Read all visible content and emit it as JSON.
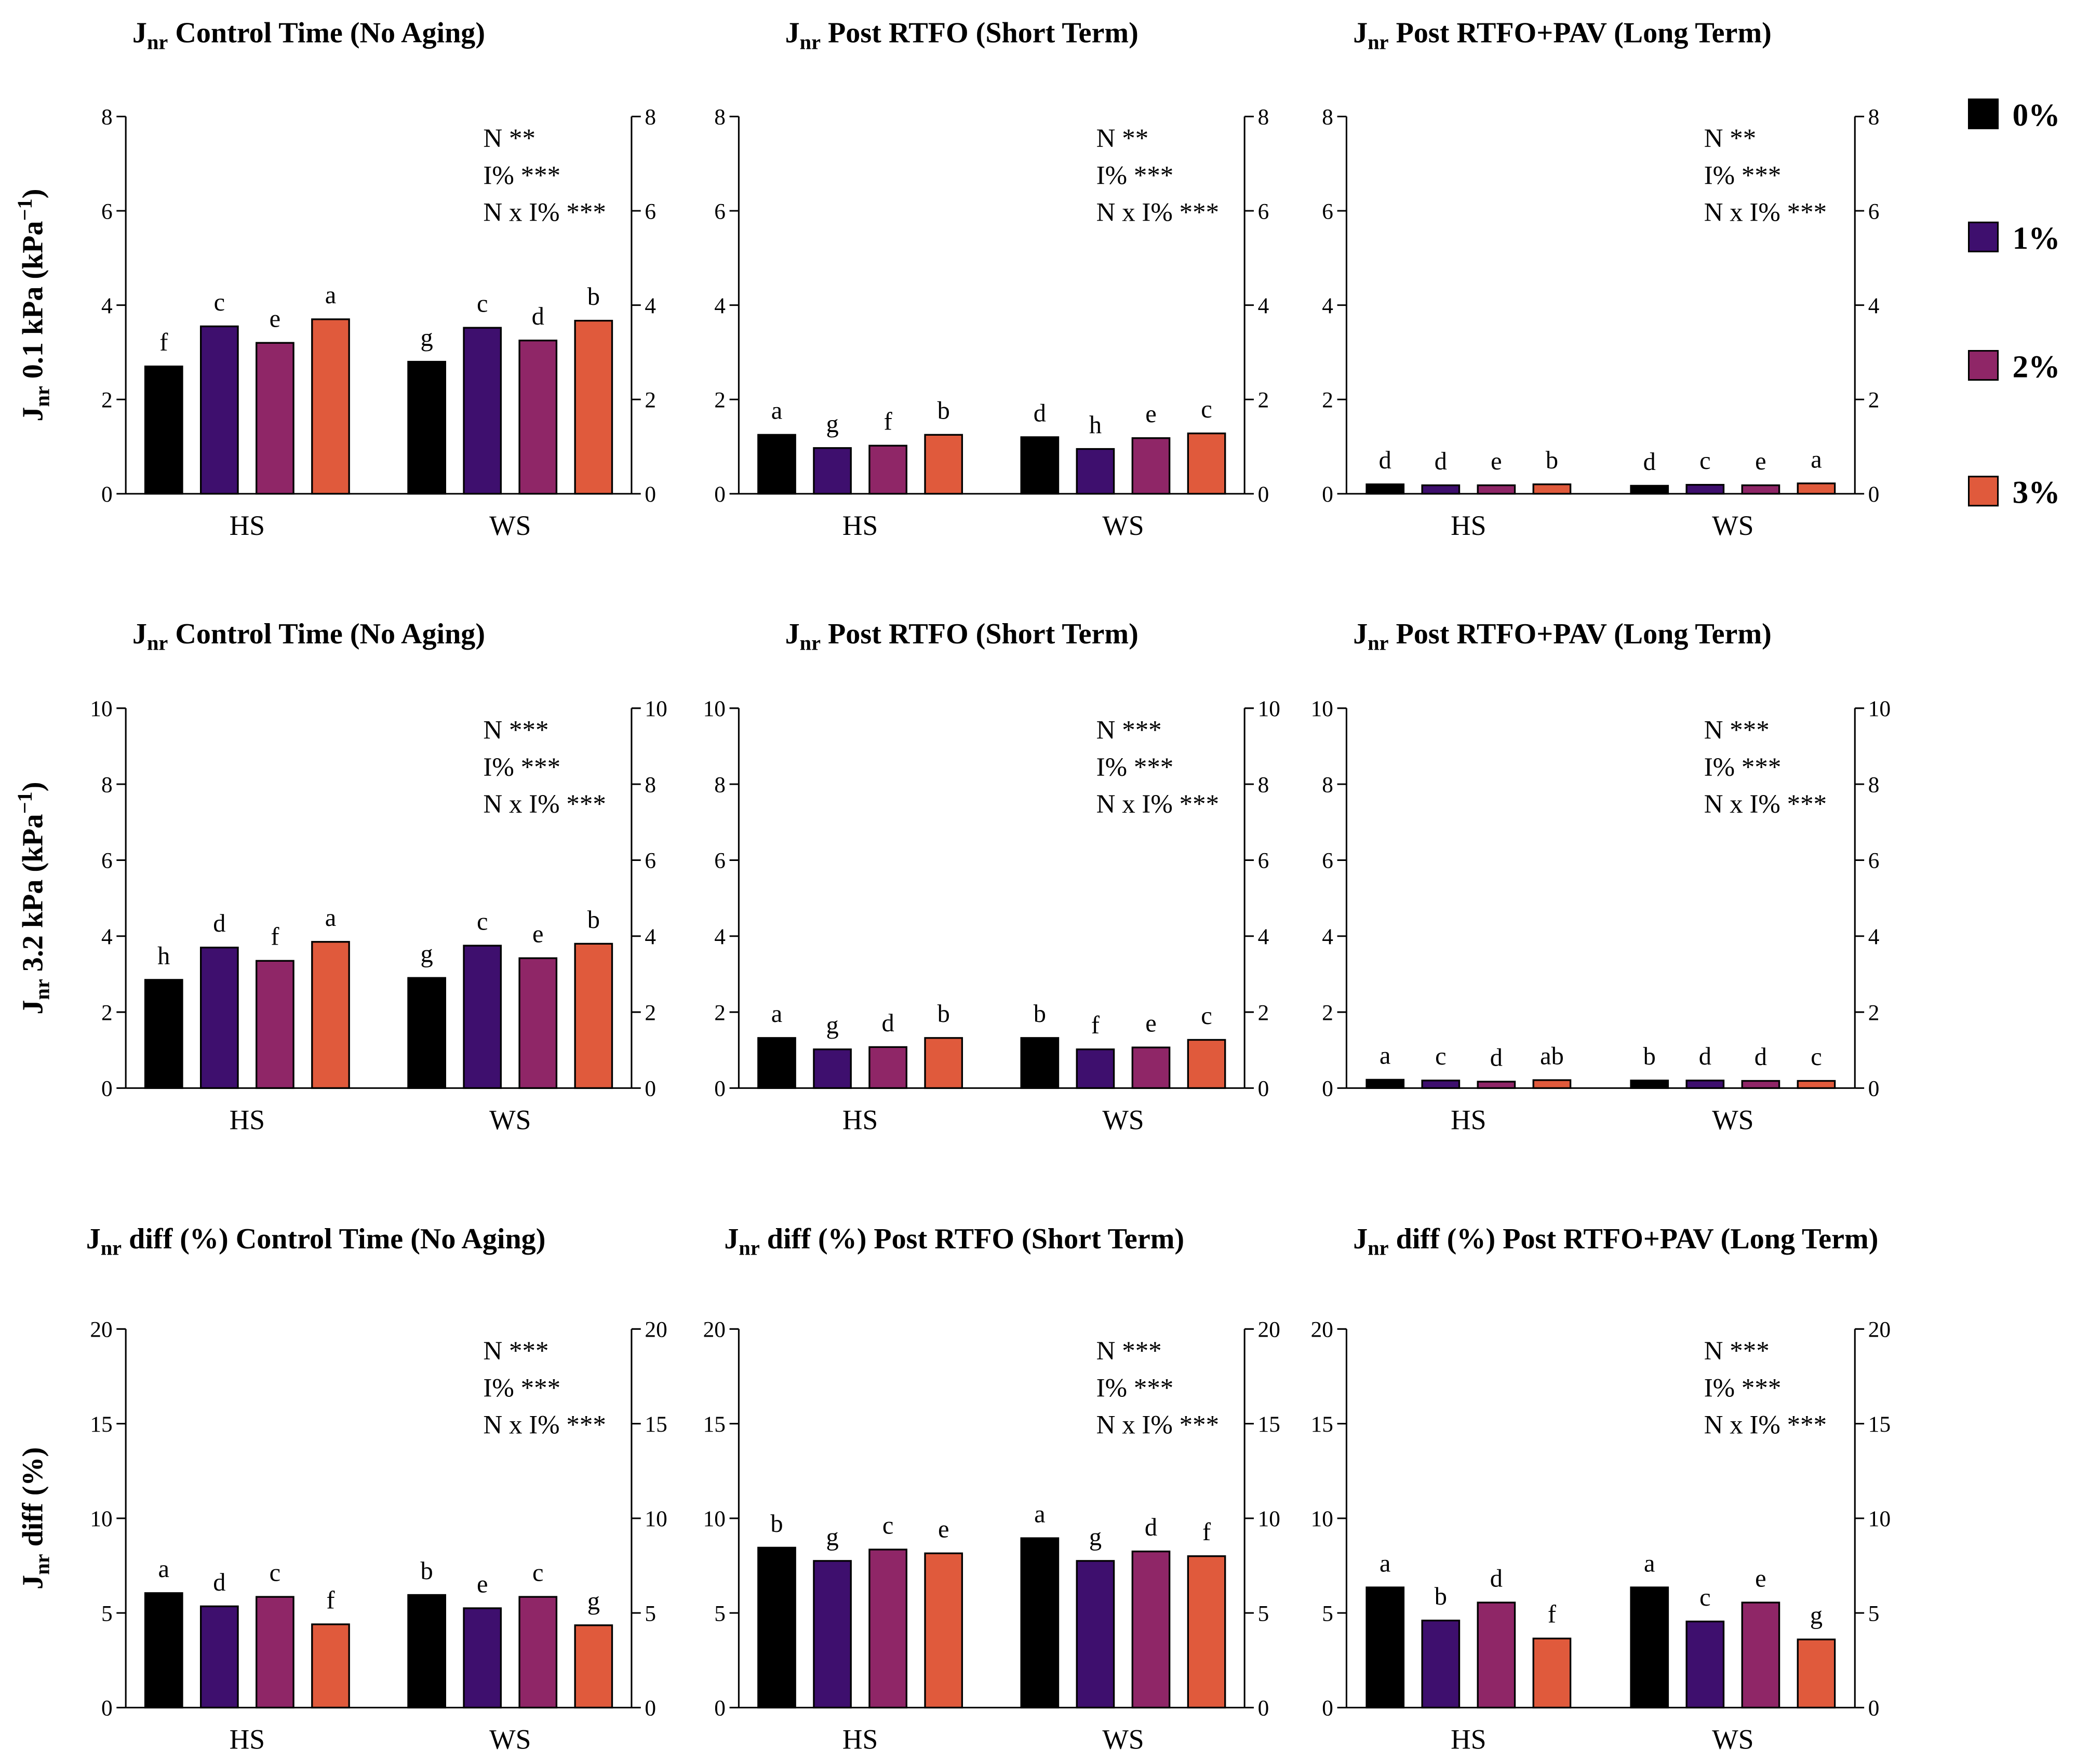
{
  "legend": {
    "entries": [
      {
        "name": "0%",
        "color": "#000000"
      },
      {
        "name": "1%",
        "color": "#3e0f6e"
      },
      {
        "name": "2%",
        "color": "#8f2667"
      },
      {
        "name": "3%",
        "color": "#e05a3c"
      }
    ]
  },
  "chart_data": [
    {
      "type": "bar",
      "title": {
        "main": "J",
        "sub": "nr",
        "rest": " Control Time (No Aging)"
      },
      "ylabel": {
        "main": "J",
        "sub": "nr",
        "rest": " 0.1 kPa (kPa",
        "sup": "−1",
        "end": ")"
      },
      "categories": [
        "HS",
        "WS"
      ],
      "series": [
        {
          "values": [
            2.7,
            2.8
          ],
          "letters": [
            "f",
            "g"
          ]
        },
        {
          "values": [
            3.55,
            3.52
          ],
          "letters": [
            "c",
            "c"
          ]
        },
        {
          "values": [
            3.2,
            3.25
          ],
          "letters": [
            "e",
            "d"
          ]
        },
        {
          "values": [
            3.7,
            3.67
          ],
          "letters": [
            "a",
            "b"
          ]
        }
      ],
      "annotations": [
        "N **",
        "I% ***",
        "N x I% ***"
      ],
      "ylim": [
        0,
        8
      ],
      "yticks": [
        0,
        2,
        4,
        6,
        8
      ]
    },
    {
      "type": "bar",
      "title": {
        "main": "J",
        "sub": "nr",
        "rest": " Post RTFO (Short Term)"
      },
      "categories": [
        "HS",
        "WS"
      ],
      "series": [
        {
          "values": [
            1.25,
            1.2
          ],
          "letters": [
            "a",
            "d"
          ]
        },
        {
          "values": [
            0.97,
            0.95
          ],
          "letters": [
            "g",
            "h"
          ]
        },
        {
          "values": [
            1.02,
            1.18
          ],
          "letters": [
            "f",
            "e"
          ]
        },
        {
          "values": [
            1.25,
            1.28
          ],
          "letters": [
            "b",
            "c"
          ]
        }
      ],
      "annotations": [
        "N **",
        "I% ***",
        "N x I% ***"
      ],
      "ylim": [
        0,
        8
      ],
      "yticks": [
        0,
        2,
        4,
        6,
        8
      ]
    },
    {
      "type": "bar",
      "title": {
        "main": "J",
        "sub": "nr",
        "rest": " Post RTFO+PAV (Long Term)"
      },
      "categories": [
        "HS",
        "WS"
      ],
      "series": [
        {
          "values": [
            0.2,
            0.17
          ],
          "letters": [
            "d",
            "d"
          ]
        },
        {
          "values": [
            0.18,
            0.19
          ],
          "letters": [
            "d",
            "c"
          ]
        },
        {
          "values": [
            0.18,
            0.18
          ],
          "letters": [
            "e",
            "e"
          ]
        },
        {
          "values": [
            0.2,
            0.22
          ],
          "letters": [
            "b",
            "a"
          ]
        }
      ],
      "annotations": [
        "N **",
        "I% ***",
        "N x I% ***"
      ],
      "ylim": [
        0,
        8
      ],
      "yticks": [
        0,
        2,
        4,
        6,
        8
      ]
    },
    {
      "type": "bar",
      "title": {
        "main": "J",
        "sub": "nr",
        "rest": " Control Time (No Aging)"
      },
      "ylabel": {
        "main": "J",
        "sub": "nr",
        "rest": " 3.2 kPa (kPa",
        "sup": "−1",
        "end": ")"
      },
      "categories": [
        "HS",
        "WS"
      ],
      "series": [
        {
          "values": [
            2.85,
            2.9
          ],
          "letters": [
            "h",
            "g"
          ]
        },
        {
          "values": [
            3.7,
            3.75
          ],
          "letters": [
            "d",
            "c"
          ]
        },
        {
          "values": [
            3.35,
            3.42
          ],
          "letters": [
            "f",
            "e"
          ]
        },
        {
          "values": [
            3.85,
            3.8
          ],
          "letters": [
            "a",
            "b"
          ]
        }
      ],
      "annotations": [
        "N ***",
        "I% ***",
        "N x I% ***"
      ],
      "ylim": [
        0,
        10
      ],
      "yticks": [
        0,
        2,
        4,
        6,
        8,
        10
      ]
    },
    {
      "type": "bar",
      "title": {
        "main": "J",
        "sub": "nr",
        "rest": " Post RTFO (Short Term)"
      },
      "categories": [
        "HS",
        "WS"
      ],
      "series": [
        {
          "values": [
            1.32,
            1.32
          ],
          "letters": [
            "a",
            "b"
          ]
        },
        {
          "values": [
            1.02,
            1.02
          ],
          "letters": [
            "g",
            "f"
          ]
        },
        {
          "values": [
            1.08,
            1.07
          ],
          "letters": [
            "d",
            "e"
          ]
        },
        {
          "values": [
            1.32,
            1.27
          ],
          "letters": [
            "b",
            "c"
          ]
        }
      ],
      "annotations": [
        "N ***",
        "I% ***",
        "N x I% ***"
      ],
      "ylim": [
        0,
        10
      ],
      "yticks": [
        0,
        2,
        4,
        6,
        8,
        10
      ]
    },
    {
      "type": "bar",
      "title": {
        "main": "J",
        "sub": "nr",
        "rest": " Post RTFO+PAV (Long Term)"
      },
      "categories": [
        "HS",
        "WS"
      ],
      "series": [
        {
          "values": [
            0.22,
            0.2
          ],
          "letters": [
            "a",
            "b"
          ]
        },
        {
          "values": [
            0.2,
            0.2
          ],
          "letters": [
            "c",
            "d"
          ]
        },
        {
          "values": [
            0.17,
            0.19
          ],
          "letters": [
            "d",
            "d"
          ]
        },
        {
          "values": [
            0.21,
            0.19
          ],
          "letters": [
            "ab",
            "c"
          ]
        }
      ],
      "annotations": [
        "N ***",
        "I% ***",
        "N x I% ***"
      ],
      "ylim": [
        0,
        10
      ],
      "yticks": [
        0,
        2,
        4,
        6,
        8,
        10
      ]
    },
    {
      "type": "bar",
      "title": {
        "main": "J",
        "sub": "nr",
        "rest": " diff (%) Control Time (No Aging)"
      },
      "ylabel": {
        "main": "J",
        "sub": "nr",
        "rest": " diff (%)"
      },
      "categories": [
        "HS",
        "WS"
      ],
      "series": [
        {
          "values": [
            6.05,
            5.95
          ],
          "letters": [
            "a",
            "b"
          ]
        },
        {
          "values": [
            5.35,
            5.25
          ],
          "letters": [
            "d",
            "e"
          ]
        },
        {
          "values": [
            5.85,
            5.85
          ],
          "letters": [
            "c",
            "c"
          ]
        },
        {
          "values": [
            4.4,
            4.35
          ],
          "letters": [
            "f",
            "g"
          ]
        }
      ],
      "annotations": [
        "N ***",
        "I% ***",
        "N x I% ***"
      ],
      "ylim": [
        0,
        20
      ],
      "yticks": [
        0,
        5,
        10,
        15,
        20
      ]
    },
    {
      "type": "bar",
      "title": {
        "main": "J",
        "sub": "nr",
        "rest": " diff (%) Post RTFO (Short Term)"
      },
      "categories": [
        "HS",
        "WS"
      ],
      "series": [
        {
          "values": [
            8.45,
            8.95
          ],
          "letters": [
            "b",
            "a"
          ]
        },
        {
          "values": [
            7.75,
            7.75
          ],
          "letters": [
            "g",
            "g"
          ]
        },
        {
          "values": [
            8.35,
            8.25
          ],
          "letters": [
            "c",
            "d"
          ]
        },
        {
          "values": [
            8.15,
            8.0
          ],
          "letters": [
            "e",
            "f"
          ]
        }
      ],
      "annotations": [
        "N ***",
        "I% ***",
        "N x I% ***"
      ],
      "ylim": [
        0,
        20
      ],
      "yticks": [
        0,
        5,
        10,
        15,
        20
      ]
    },
    {
      "type": "bar",
      "title": {
        "main": "J",
        "sub": "nr",
        "rest": " diff (%) Post RTFO+PAV (Long Term)"
      },
      "categories": [
        "HS",
        "WS"
      ],
      "series": [
        {
          "values": [
            6.35,
            6.35
          ],
          "letters": [
            "a",
            "a"
          ]
        },
        {
          "values": [
            4.6,
            4.55
          ],
          "letters": [
            "b",
            "c"
          ]
        },
        {
          "values": [
            5.55,
            5.55
          ],
          "letters": [
            "d",
            "e"
          ]
        },
        {
          "values": [
            3.65,
            3.6
          ],
          "letters": [
            "f",
            "g"
          ]
        }
      ],
      "annotations": [
        "N ***",
        "I% ***",
        "N x I% ***"
      ],
      "ylim": [
        0,
        20
      ],
      "yticks": [
        0,
        5,
        10,
        15,
        20
      ]
    }
  ]
}
